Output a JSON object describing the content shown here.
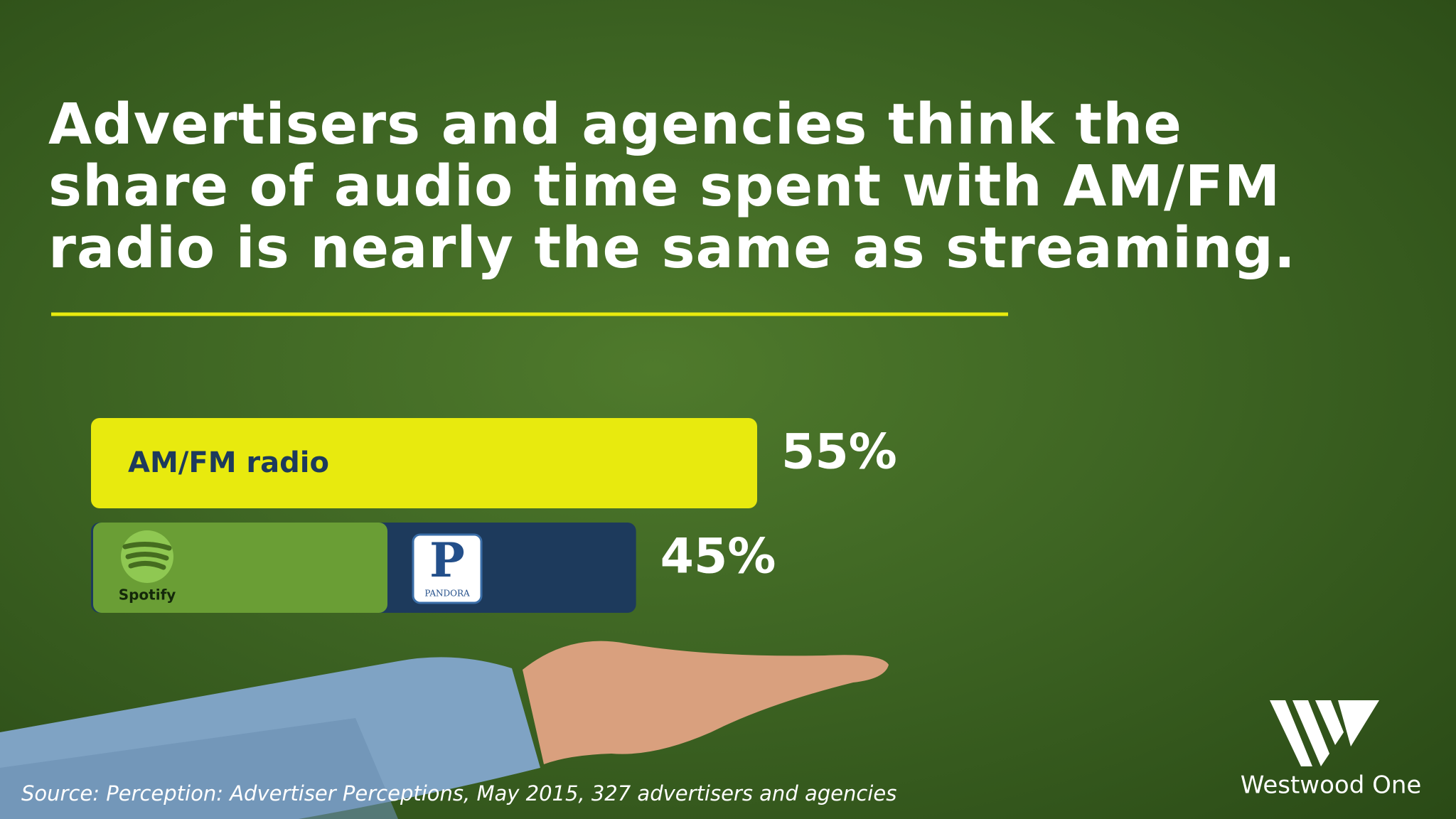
{
  "title": "Advertisers and agencies think the share of audio time spent with AM/FM radio is nearly the same as streaming.",
  "source": "Source: Perception: Advertiser Perceptions, May 2015, 327 advertisers and agencies",
  "brand": "Westwood One",
  "chart_data": {
    "type": "bar",
    "orientation": "horizontal",
    "categories": [
      "AM/FM radio",
      null
    ],
    "values": [
      55,
      45
    ],
    "value_labels": [
      "55%",
      "45%"
    ],
    "colors": [
      "#e8ea0e",
      "#1d3a5c"
    ],
    "logos": [
      {
        "name": "Spotify"
      },
      {
        "mark": "P",
        "name": "PANDORA"
      }
    ]
  }
}
